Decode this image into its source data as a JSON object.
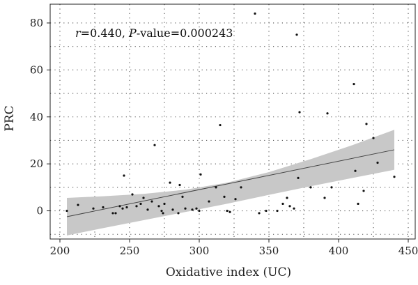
{
  "chart_data": {
    "type": "scatter",
    "xlabel": "Oxidative index (UC)",
    "ylabel": "PRC",
    "xlim": [
      193,
      455
    ],
    "ylim": [
      -12,
      88
    ],
    "x_ticks": [
      200,
      250,
      300,
      350,
      400,
      450
    ],
    "y_ticks": [
      0,
      20,
      40,
      60,
      80
    ],
    "grid": "dotted",
    "annotation": {
      "r_label": "r",
      "r_value": "=0.440, ",
      "p_label": "P",
      "p_value": "-value=0.000243"
    },
    "points": [
      {
        "x": 205,
        "y": 0
      },
      {
        "x": 213,
        "y": 2.5
      },
      {
        "x": 224,
        "y": 1
      },
      {
        "x": 231,
        "y": 1.5
      },
      {
        "x": 238,
        "y": -1
      },
      {
        "x": 240,
        "y": -1
      },
      {
        "x": 243,
        "y": 2
      },
      {
        "x": 245,
        "y": 1
      },
      {
        "x": 246,
        "y": 15
      },
      {
        "x": 248,
        "y": 1.5
      },
      {
        "x": 252,
        "y": 7
      },
      {
        "x": 255,
        "y": 2
      },
      {
        "x": 258,
        "y": 3
      },
      {
        "x": 260,
        "y": 5.5
      },
      {
        "x": 263,
        "y": 0.5
      },
      {
        "x": 266,
        "y": 4
      },
      {
        "x": 268,
        "y": 28
      },
      {
        "x": 271,
        "y": 2
      },
      {
        "x": 273,
        "y": 0
      },
      {
        "x": 274,
        "y": -1
      },
      {
        "x": 275,
        "y": 3
      },
      {
        "x": 279,
        "y": 12
      },
      {
        "x": 281,
        "y": 0.5
      },
      {
        "x": 285,
        "y": -1
      },
      {
        "x": 286,
        "y": 11
      },
      {
        "x": 288,
        "y": 6
      },
      {
        "x": 290,
        "y": 1
      },
      {
        "x": 295,
        "y": 0.5
      },
      {
        "x": 298,
        "y": 1
      },
      {
        "x": 300,
        "y": 0
      },
      {
        "x": 301,
        "y": 15.5
      },
      {
        "x": 307,
        "y": 4
      },
      {
        "x": 312,
        "y": 10
      },
      {
        "x": 315,
        "y": 36.5
      },
      {
        "x": 318,
        "y": 6
      },
      {
        "x": 320,
        "y": 0
      },
      {
        "x": 322,
        "y": -0.5
      },
      {
        "x": 326,
        "y": 5
      },
      {
        "x": 330,
        "y": 10
      },
      {
        "x": 340,
        "y": 84
      },
      {
        "x": 343,
        "y": -1
      },
      {
        "x": 348,
        "y": 0
      },
      {
        "x": 356,
        "y": 0
      },
      {
        "x": 360,
        "y": 3
      },
      {
        "x": 363,
        "y": 5.5
      },
      {
        "x": 365,
        "y": 2
      },
      {
        "x": 368,
        "y": 1
      },
      {
        "x": 370,
        "y": 75
      },
      {
        "x": 371,
        "y": 14
      },
      {
        "x": 372,
        "y": 42
      },
      {
        "x": 380,
        "y": 10
      },
      {
        "x": 390,
        "y": 5.5
      },
      {
        "x": 392,
        "y": 41.5
      },
      {
        "x": 395,
        "y": 10
      },
      {
        "x": 411,
        "y": 54
      },
      {
        "x": 412,
        "y": 17
      },
      {
        "x": 414,
        "y": 3
      },
      {
        "x": 418,
        "y": 8.5
      },
      {
        "x": 420,
        "y": 37
      },
      {
        "x": 425,
        "y": 31
      },
      {
        "x": 428,
        "y": 20.5
      },
      {
        "x": 440,
        "y": 14.5
      }
    ],
    "fit_line": {
      "x": [
        205,
        440
      ],
      "y": [
        -2.5,
        26
      ]
    },
    "confidence_band": {
      "x": [
        205,
        230,
        260,
        290,
        320,
        350,
        380,
        410,
        440
      ],
      "upper": [
        5.5,
        6.2,
        7.2,
        9,
        12,
        16.5,
        22,
        28,
        34.5
      ],
      "lower": [
        -10.5,
        -7.5,
        -4,
        -0.5,
        3,
        6.8,
        10.5,
        14,
        17.5
      ]
    }
  }
}
